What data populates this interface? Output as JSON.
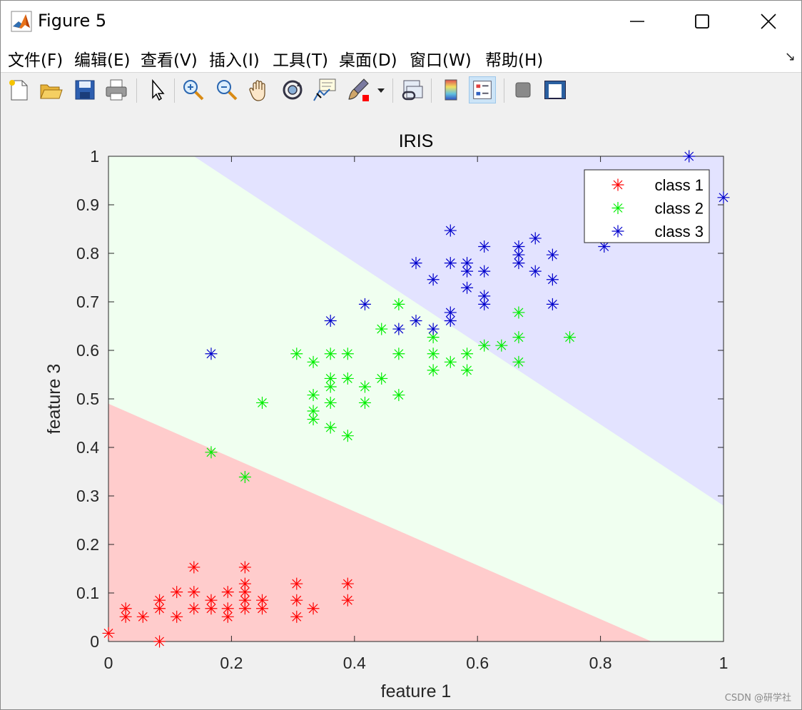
{
  "window": {
    "title": "Figure 5"
  },
  "menus": [
    "文件(F)",
    "编辑(E)",
    "查看(V)",
    "插入(I)",
    "工具(T)",
    "桌面(D)",
    "窗口(W)",
    "帮助(H)"
  ],
  "toolbar_icons": [
    "new-figure-icon",
    "open-file-icon",
    "save-icon",
    "print-icon",
    "pointer-icon",
    "zoom-in-icon",
    "zoom-out-icon",
    "pan-hand-icon",
    "rotate-3d-icon",
    "data-cursor-icon",
    "brush-icon",
    "link-plot-icon",
    "colorbar-icon",
    "legend-icon",
    "hide-plot-tools-icon",
    "show-plot-tools-icon"
  ],
  "watermark": "CSDN @研学社",
  "colors": {
    "class1": "#ff0000",
    "class2": "#00ee00",
    "class3": "#0000cc",
    "region1": "#ffcccc",
    "region2": "#f0fff0",
    "region3": "#e3e3ff"
  },
  "chart_data": {
    "type": "scatter",
    "title": "IRIS",
    "xlabel": "feature 1",
    "ylabel": "feature 3",
    "xlim": [
      0,
      1
    ],
    "ylim": [
      0,
      1
    ],
    "xticks": [
      "0",
      "0.2",
      "0.4",
      "0.6",
      "0.8",
      "1"
    ],
    "yticks": [
      "0",
      "0.1",
      "0.2",
      "0.3",
      "0.4",
      "0.5",
      "0.6",
      "0.7",
      "0.8",
      "0.9",
      "1"
    ],
    "marker": "*",
    "legend": {
      "position": "top-right",
      "entries": [
        "class 1",
        "class 2",
        "class 3"
      ]
    },
    "decision_regions": [
      {
        "class": "class 1",
        "boundary_top": [
          [
            0,
            0.49
          ],
          [
            0.883,
            0
          ]
        ]
      },
      {
        "class": "class 3",
        "boundary_bottom": [
          [
            0.139,
            1
          ],
          [
            1,
            0.28
          ]
        ]
      }
    ],
    "series": [
      {
        "name": "class 1",
        "points": [
          [
            0,
            0.017
          ],
          [
            0.028,
            0.068
          ],
          [
            0.028,
            0.051
          ],
          [
            0.056,
            0.051
          ],
          [
            0.083,
            0.085
          ],
          [
            0.083,
            0.068
          ],
          [
            0.083,
            0
          ],
          [
            0.111,
            0.102
          ],
          [
            0.111,
            0.051
          ],
          [
            0.139,
            0.153
          ],
          [
            0.139,
            0.102
          ],
          [
            0.139,
            0.068
          ],
          [
            0.167,
            0.085
          ],
          [
            0.167,
            0.068
          ],
          [
            0.194,
            0.102
          ],
          [
            0.194,
            0.068
          ],
          [
            0.194,
            0.051
          ],
          [
            0.222,
            0.153
          ],
          [
            0.222,
            0.119
          ],
          [
            0.222,
            0.102
          ],
          [
            0.222,
            0.085
          ],
          [
            0.222,
            0.068
          ],
          [
            0.25,
            0.085
          ],
          [
            0.25,
            0.068
          ],
          [
            0.306,
            0.119
          ],
          [
            0.306,
            0.085
          ],
          [
            0.306,
            0.051
          ],
          [
            0.333,
            0.068
          ],
          [
            0.389,
            0.119
          ],
          [
            0.389,
            0.085
          ]
        ]
      },
      {
        "name": "class 2",
        "points": [
          [
            0.167,
            0.39
          ],
          [
            0.222,
            0.339
          ],
          [
            0.25,
            0.492
          ],
          [
            0.306,
            0.593
          ],
          [
            0.333,
            0.576
          ],
          [
            0.333,
            0.508
          ],
          [
            0.333,
            0.475
          ],
          [
            0.333,
            0.458
          ],
          [
            0.361,
            0.593
          ],
          [
            0.361,
            0.542
          ],
          [
            0.361,
            0.525
          ],
          [
            0.361,
            0.492
          ],
          [
            0.361,
            0.441
          ],
          [
            0.389,
            0.593
          ],
          [
            0.389,
            0.542
          ],
          [
            0.389,
            0.424
          ],
          [
            0.417,
            0.525
          ],
          [
            0.417,
            0.492
          ],
          [
            0.444,
            0.644
          ],
          [
            0.444,
            0.542
          ],
          [
            0.472,
            0.695
          ],
          [
            0.472,
            0.593
          ],
          [
            0.472,
            0.508
          ],
          [
            0.528,
            0.627
          ],
          [
            0.528,
            0.593
          ],
          [
            0.528,
            0.559
          ],
          [
            0.556,
            0.576
          ],
          [
            0.583,
            0.593
          ],
          [
            0.583,
            0.559
          ],
          [
            0.611,
            0.61
          ],
          [
            0.639,
            0.61
          ],
          [
            0.667,
            0.678
          ],
          [
            0.667,
            0.627
          ],
          [
            0.667,
            0.576
          ],
          [
            0.75,
            0.627
          ]
        ]
      },
      {
        "name": "class 3",
        "points": [
          [
            0.167,
            0.593
          ],
          [
            0.361,
            0.661
          ],
          [
            0.417,
            0.695
          ],
          [
            0.472,
            0.644
          ],
          [
            0.5,
            0.78
          ],
          [
            0.5,
            0.661
          ],
          [
            0.528,
            0.746
          ],
          [
            0.528,
            0.644
          ],
          [
            0.556,
            0.847
          ],
          [
            0.556,
            0.78
          ],
          [
            0.556,
            0.678
          ],
          [
            0.556,
            0.661
          ],
          [
            0.583,
            0.78
          ],
          [
            0.583,
            0.763
          ],
          [
            0.583,
            0.729
          ],
          [
            0.611,
            0.814
          ],
          [
            0.611,
            0.763
          ],
          [
            0.611,
            0.712
          ],
          [
            0.611,
            0.695
          ],
          [
            0.667,
            0.814
          ],
          [
            0.667,
            0.797
          ],
          [
            0.667,
            0.78
          ],
          [
            0.694,
            0.831
          ],
          [
            0.694,
            0.763
          ],
          [
            0.722,
            0.797
          ],
          [
            0.722,
            0.746
          ],
          [
            0.722,
            0.695
          ],
          [
            0.806,
            0.814
          ],
          [
            0.944,
            1
          ],
          [
            1,
            0.915
          ]
        ]
      }
    ]
  }
}
